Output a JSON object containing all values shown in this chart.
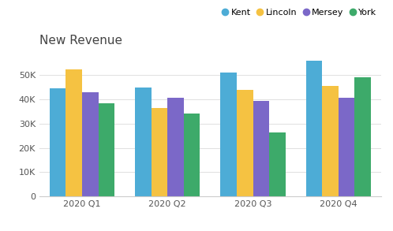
{
  "title": "New Revenue",
  "categories": [
    "2020 Q1",
    "2020 Q2",
    "2020 Q3",
    "2020 Q4"
  ],
  "series": {
    "Kent": [
      44500,
      44800,
      51000,
      56000
    ],
    "Lincoln": [
      52500,
      36500,
      44000,
      45500
    ],
    "Mersey": [
      43000,
      40800,
      39500,
      40800
    ],
    "York": [
      38500,
      34000,
      26500,
      49000
    ]
  },
  "colors": {
    "Kent": "#4DACD6",
    "Lincoln": "#F5C242",
    "Mersey": "#7B68C8",
    "York": "#3DAA6A"
  },
  "ylim": [
    0,
    60000
  ],
  "yticks": [
    0,
    10000,
    20000,
    30000,
    40000,
    50000
  ],
  "ytick_labels": [
    "0",
    "10K",
    "20K",
    "30K",
    "40K",
    "50K"
  ],
  "background_color": "#ffffff",
  "title_fontsize": 11,
  "tick_fontsize": 8,
  "legend_fontsize": 8
}
